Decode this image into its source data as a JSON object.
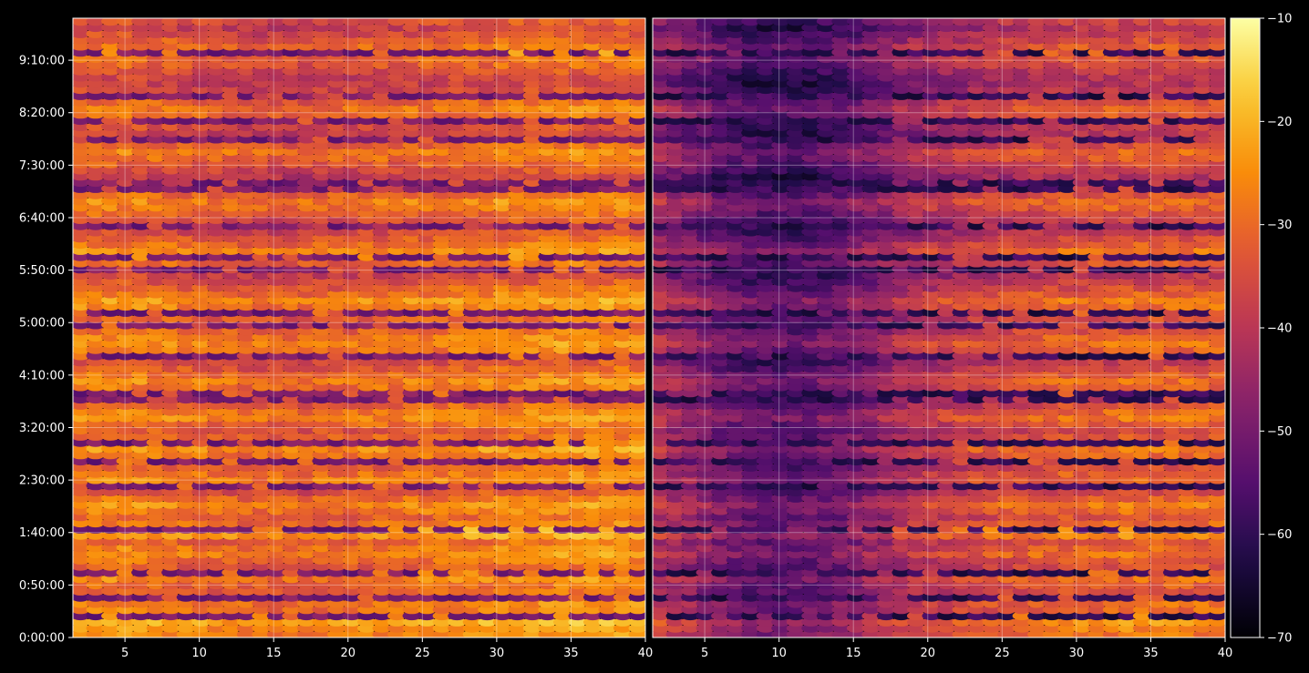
{
  "chart_data": {
    "type": "heatmap",
    "title": "",
    "panels": [
      {
        "name": "",
        "xlim": [
          1.5,
          40
        ],
        "xticks": [
          5,
          10,
          15,
          20,
          25,
          30,
          35,
          40
        ],
        "row_levels": [
          -25,
          -23,
          -20,
          -24,
          -27,
          -26,
          -28,
          -30,
          -29,
          -25,
          -27,
          -31,
          -28,
          -24,
          -26,
          -29,
          -22,
          -21,
          -27,
          -30,
          -26,
          -24,
          -28,
          -32,
          -29,
          -25,
          -27,
          -30,
          -28,
          -26,
          -23,
          -27,
          -29,
          -31,
          -28,
          -24,
          -26,
          -30,
          -33,
          -29,
          -27,
          -25,
          -28,
          -31,
          -34,
          -30,
          -27,
          -24,
          -26,
          -29,
          -32,
          -30,
          -28,
          -25,
          -23,
          -27,
          -30,
          -33,
          -35,
          -32,
          -29,
          -26,
          -24,
          -28,
          -31,
          -34,
          -36,
          -33,
          -30,
          -27,
          -25,
          -29,
          -32,
          -35,
          -37,
          -34,
          -31,
          -28,
          -26,
          -30,
          -33,
          -36,
          -34,
          -31,
          -29,
          -27,
          -30,
          -32,
          -35,
          -37,
          -36,
          -34,
          -31,
          -29,
          -26,
          -28,
          -31,
          -34,
          -36,
          -33
        ],
        "col_gradient": [
          0,
          0,
          0,
          0,
          0,
          -1,
          -1,
          -2,
          -2,
          -3,
          -3,
          -4,
          -4,
          -4,
          -4,
          -4,
          -3,
          -3,
          -3,
          -2,
          -2,
          -2,
          -1,
          -1,
          -1,
          0,
          0,
          0,
          1,
          1,
          1,
          1,
          2,
          2,
          2,
          2,
          2,
          2
        ],
        "dark_row_values": [
          -45,
          -55
        ]
      },
      {
        "name": "",
        "xlim": [
          1.5,
          40
        ],
        "xticks": [
          5,
          10,
          15,
          20,
          25,
          30,
          35,
          40
        ],
        "row_levels": [
          -28,
          -26,
          -24,
          -27,
          -30,
          -29,
          -31,
          -33,
          -32,
          -29,
          -31,
          -34,
          -32,
          -28,
          -30,
          -33,
          -25,
          -24,
          -30,
          -33,
          -29,
          -27,
          -31,
          -35,
          -33,
          -29,
          -31,
          -34,
          -32,
          -30,
          -27,
          -31,
          -33,
          -35,
          -32,
          -28,
          -30,
          -34,
          -37,
          -33,
          -31,
          -29,
          -32,
          -35,
          -38,
          -34,
          -31,
          -28,
          -30,
          -33,
          -36,
          -34,
          -32,
          -29,
          -27,
          -31,
          -34,
          -37,
          -39,
          -36,
          -33,
          -30,
          -28,
          -32,
          -35,
          -38,
          -40,
          -37,
          -34,
          -31,
          -29,
          -33,
          -36,
          -39,
          -41,
          -38,
          -35,
          -32,
          -30,
          -34,
          -37,
          -40,
          -38,
          -35,
          -33,
          -31,
          -34,
          -36,
          -39,
          -41,
          -40,
          -38,
          -35,
          -33,
          -30,
          -32,
          -35,
          -38,
          -40,
          -37
        ],
        "col_gradient": [
          -10,
          -12,
          -14,
          -16,
          -18,
          -20,
          -21,
          -22,
          -22,
          -22,
          -21,
          -20,
          -19,
          -17,
          -15,
          -13,
          -11,
          -9,
          -8,
          -7,
          -6,
          -5,
          -4,
          -3,
          -3,
          -2,
          -2,
          -1,
          -1,
          -1,
          0,
          0,
          0,
          0,
          0,
          0,
          0,
          0
        ],
        "dark_row_values": [
          -55,
          -65
        ]
      }
    ],
    "y_axis": {
      "range_seconds": [
        0,
        35400
      ],
      "tick_values_seconds": [
        0,
        3000,
        6000,
        9000,
        12000,
        15000,
        18000,
        21000,
        24000,
        27000,
        30000,
        33000
      ],
      "tick_labels": [
        "0:00:00",
        "0:50:00",
        "1:40:00",
        "2:30:00",
        "3:20:00",
        "4:10:00",
        "5:00:00",
        "5:50:00",
        "6:40:00",
        "7:30:00",
        "8:20:00",
        "9:10:00"
      ]
    },
    "colorbar": {
      "colormap": "inferno",
      "range": [
        -70,
        -10
      ],
      "tick_values": [
        -70,
        -60,
        -50,
        -40,
        -30,
        -20,
        -10
      ],
      "tick_labels": [
        "−70",
        "−60",
        "−50",
        "−40",
        "−30",
        "−20",
        "−10"
      ]
    },
    "grid": true,
    "colors": {
      "background": "#000000",
      "axis": "#ffffff",
      "grid": "#ffffff"
    }
  }
}
